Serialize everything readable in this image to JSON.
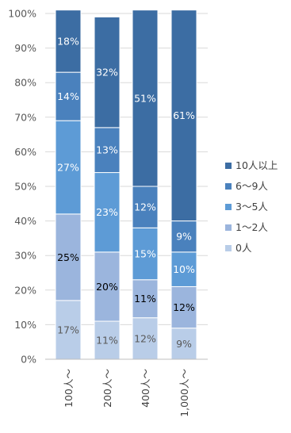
{
  "chart_data": {
    "type": "bar",
    "stacked": "percent",
    "categories": [
      "100人～",
      "200人～",
      "400人～",
      "1,000人～"
    ],
    "series": [
      {
        "name": "0人",
        "values": [
          17,
          11,
          12,
          9
        ],
        "color": "#b9cde8",
        "label_color": "#595959"
      },
      {
        "name": "1～2人",
        "values": [
          25,
          20,
          11,
          12
        ],
        "color": "#9bb5dd",
        "label_color": "#000000"
      },
      {
        "name": "3～5人",
        "values": [
          27,
          23,
          15,
          10
        ],
        "color": "#5d9bd6",
        "label_color": "#ffffff"
      },
      {
        "name": "6～9人",
        "values": [
          14,
          13,
          12,
          9
        ],
        "color": "#4a81bd",
        "label_color": "#ffffff"
      },
      {
        "name": "10人以上",
        "values": [
          18,
          32,
          51,
          61
        ],
        "color": "#3c6da3",
        "label_color": "#ffffff"
      }
    ],
    "data_labels": [
      [
        "17%",
        "25%",
        "27%",
        "14%",
        "18%"
      ],
      [
        "11%",
        "20%",
        "23%",
        "13%",
        "32%"
      ],
      [
        "12%",
        "11%",
        "15%",
        "12%",
        "51%"
      ],
      [
        "9%",
        "12%",
        "10%",
        "9%",
        "61%"
      ]
    ],
    "y_ticks": [
      "0%",
      "10%",
      "20%",
      "30%",
      "40%",
      "50%",
      "60%",
      "70%",
      "80%",
      "90%",
      "100%"
    ],
    "ylim": [
      0,
      100
    ],
    "grid": true,
    "legend_position": "right",
    "legend_order": [
      "10人以上",
      "6～9人",
      "3～5人",
      "1～2人",
      "0人"
    ],
    "title": "",
    "xlabel": "",
    "ylabel": ""
  }
}
